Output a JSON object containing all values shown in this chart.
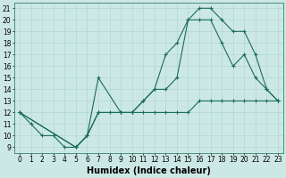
{
  "title": "",
  "xlabel": "Humidex (Indice chaleur)",
  "background_color": "#cce8e4",
  "line_color": "#1a6b5a",
  "grid_color": "#b0d8d0",
  "xlim": [
    -0.5,
    23.5
  ],
  "ylim": [
    8.5,
    21.5
  ],
  "xticks": [
    0,
    1,
    2,
    3,
    4,
    5,
    6,
    7,
    8,
    9,
    10,
    11,
    12,
    13,
    14,
    15,
    16,
    17,
    18,
    19,
    20,
    21,
    22,
    23
  ],
  "yticks": [
    9,
    10,
    11,
    12,
    13,
    14,
    15,
    16,
    17,
    18,
    19,
    20,
    21
  ],
  "line1_x": [
    0,
    1,
    2,
    3,
    4,
    5,
    6,
    7,
    8,
    9,
    10,
    11,
    12,
    13,
    14,
    15,
    16,
    17,
    18,
    19,
    20,
    21,
    22,
    23
  ],
  "line1_y": [
    12,
    11,
    10,
    10,
    9,
    9,
    10,
    12,
    12,
    12,
    12,
    12,
    12,
    12,
    12,
    12,
    13,
    13,
    13,
    13,
    13,
    13,
    13,
    13
  ],
  "line2_x": [
    0,
    5,
    6,
    7,
    9,
    10,
    11,
    12,
    13,
    14,
    15,
    16,
    17,
    18,
    19,
    20,
    21,
    22,
    23
  ],
  "line2_y": [
    12,
    9,
    10,
    12,
    12,
    12,
    13,
    14,
    17,
    18,
    20,
    20,
    20,
    18,
    16,
    17,
    15,
    14,
    13
  ],
  "line3_x": [
    0,
    5,
    6,
    7,
    9,
    10,
    11,
    12,
    13,
    14,
    15,
    16,
    17,
    18,
    19,
    20,
    21,
    22,
    23
  ],
  "line3_y": [
    12,
    9,
    10,
    15,
    12,
    12,
    13,
    14,
    14,
    15,
    20,
    21,
    21,
    20,
    19,
    19,
    17,
    14,
    13
  ],
  "tick_fontsize": 5.5,
  "xlabel_fontsize": 7
}
